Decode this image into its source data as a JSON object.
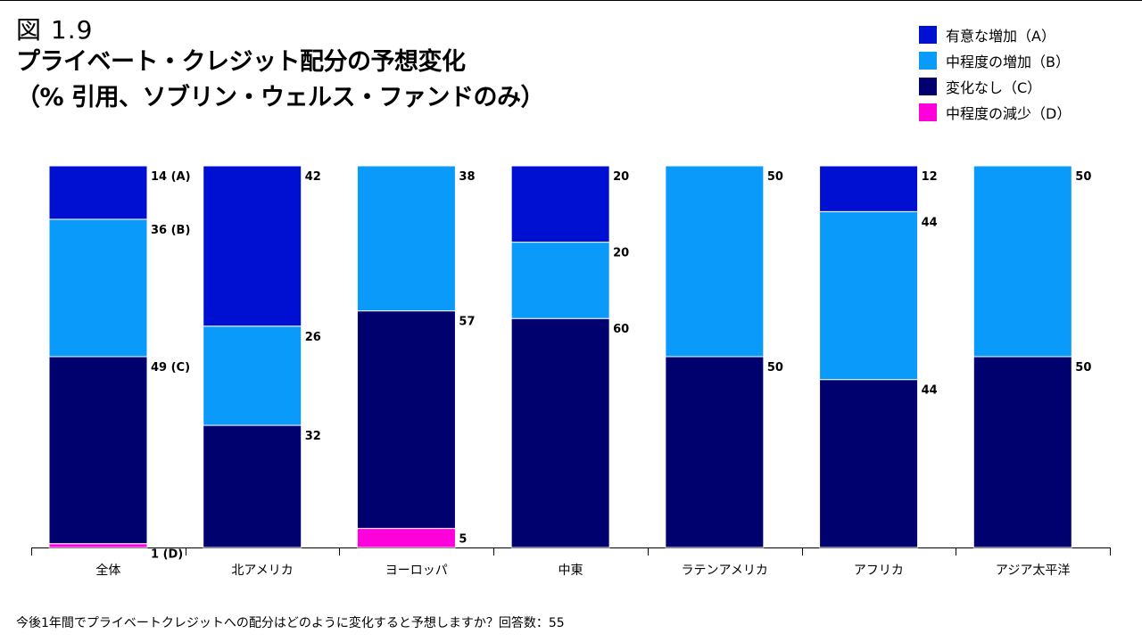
{
  "figure": {
    "number": "図 1.9"
  },
  "title": {
    "line1": "プライベート・クレジット配分の予想変化",
    "line2": "（% 引用、ソブリン・ウェルス・ファンドのみ）"
  },
  "legend": [
    {
      "label": "有意な増加（A）",
      "color": "#0010D2"
    },
    {
      "label": "中程度の増加（B）",
      "color": "#0A9BFA"
    },
    {
      "label": "変化なし（C）",
      "color": "#00006E"
    },
    {
      "label": "中程度の減少（D）",
      "color": "#FF00DC"
    }
  ],
  "footnote": "今後1年間でプライベートクレジットへの配分はどのように変化すると予想しますか？回答数：55",
  "chart_data": {
    "type": "bar",
    "stacked": true,
    "title": "プライベート・クレジット配分の予想変化",
    "ylim": [
      0,
      100
    ],
    "categories": [
      "全体",
      "北アメリカ",
      "ヨーロッパ",
      "中東",
      "ラテンアメリカ",
      "アフリカ",
      "アジア太平洋"
    ],
    "series": [
      {
        "name": "中程度の減少（D）",
        "key": "D",
        "values": [
          1,
          0,
          5,
          0,
          0,
          0,
          0
        ]
      },
      {
        "name": "変化なし（C）",
        "key": "C",
        "values": [
          49,
          32,
          57,
          60,
          50,
          44,
          50
        ]
      },
      {
        "name": "中程度の増加（B）",
        "key": "B",
        "values": [
          36,
          26,
          38,
          20,
          50,
          44,
          50
        ]
      },
      {
        "name": "有意な増加（A）",
        "key": "A",
        "values": [
          14,
          42,
          0,
          20,
          0,
          12,
          0
        ]
      }
    ],
    "data_labels": [
      {
        "A": "14 (A)",
        "B": "36 (B)",
        "C": "49 (C)",
        "D": "1 (D)"
      },
      {
        "A": "42",
        "B": "26",
        "C": "32",
        "D": ""
      },
      {
        "A": "",
        "B": "38",
        "C": "57",
        "D": "5"
      },
      {
        "A": "20",
        "B": "20",
        "C": "60",
        "D": ""
      },
      {
        "A": "",
        "B": "50",
        "C": "50",
        "D": ""
      },
      {
        "A": "12",
        "B": "44",
        "C": "44",
        "D": ""
      },
      {
        "A": "",
        "B": "50",
        "C": "50",
        "D": ""
      }
    ]
  }
}
